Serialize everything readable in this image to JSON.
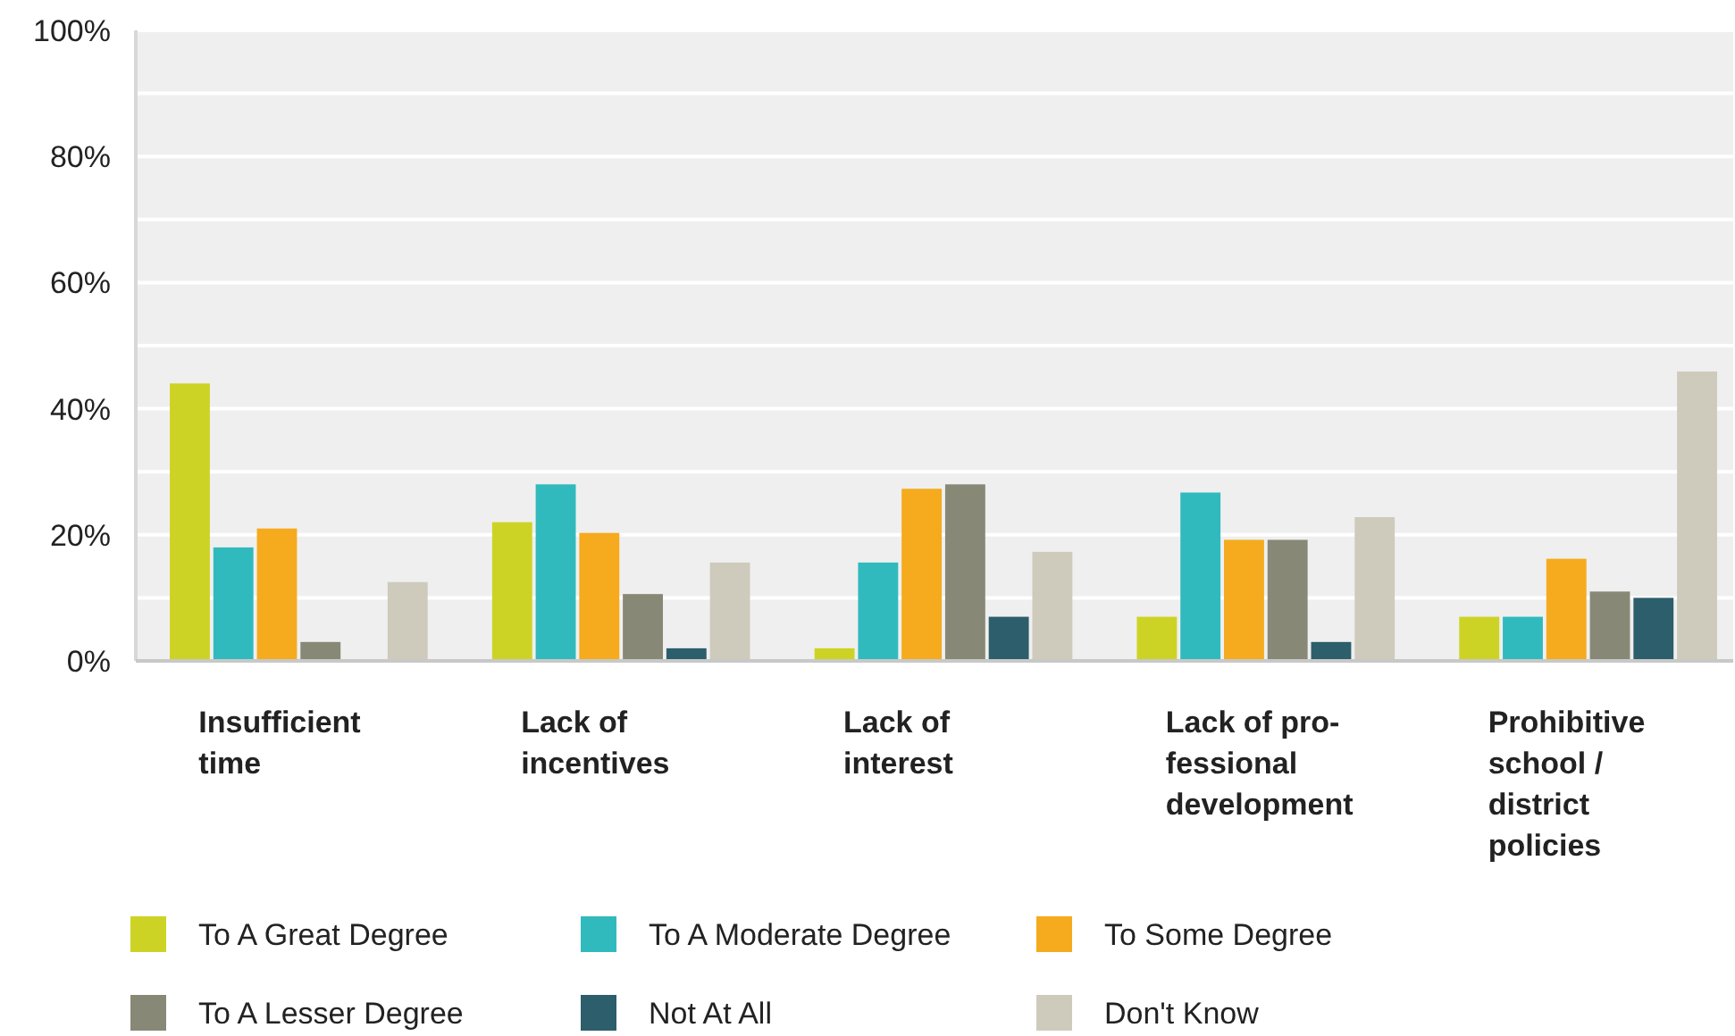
{
  "chart_data": {
    "type": "bar",
    "categories": [
      "Insufficient\ntime",
      "Lack of\nincentives",
      "Lack of\ninterest",
      "Lack of pro-\nfessional\ndevelopment",
      "Prohibitive\nschool /\ndistrict\npolicies"
    ],
    "series": [
      {
        "name": "To A Great Degree",
        "color": "#cdd325",
        "values": [
          44,
          22,
          2,
          7,
          7
        ]
      },
      {
        "name": "To A Moderate Degree",
        "color": "#31babd",
        "values": [
          18,
          28,
          15.6,
          26.7,
          7
        ]
      },
      {
        "name": "To Some Degree",
        "color": "#f5ab1d",
        "values": [
          21,
          20.3,
          27.3,
          19.2,
          16.2
        ]
      },
      {
        "name": "To A Lesser Degree",
        "color": "#888877",
        "values": [
          3,
          10.6,
          28,
          19.2,
          11
        ]
      },
      {
        "name": "Not At All",
        "color": "#2c5e6b",
        "values": [
          0,
          2,
          7,
          3,
          10
        ]
      },
      {
        "name": "Don't Know",
        "color": "#cecbbd",
        "values": [
          12.5,
          15.6,
          17.3,
          22.8,
          45.9
        ]
      }
    ],
    "ylim": [
      0,
      100
    ],
    "yticks": [
      {
        "value": 0,
        "label": "0%"
      },
      {
        "value": 10,
        "label": null
      },
      {
        "value": 20,
        "label": "20%"
      },
      {
        "value": 30,
        "label": null
      },
      {
        "value": 40,
        "label": "40%"
      },
      {
        "value": 50,
        "label": null
      },
      {
        "value": 60,
        "label": "60%"
      },
      {
        "value": 70,
        "label": null
      },
      {
        "value": 80,
        "label": "80%"
      },
      {
        "value": 90,
        "label": null
      },
      {
        "value": 100,
        "label": "100%"
      }
    ],
    "grid": "y",
    "legend": "bottom"
  }
}
